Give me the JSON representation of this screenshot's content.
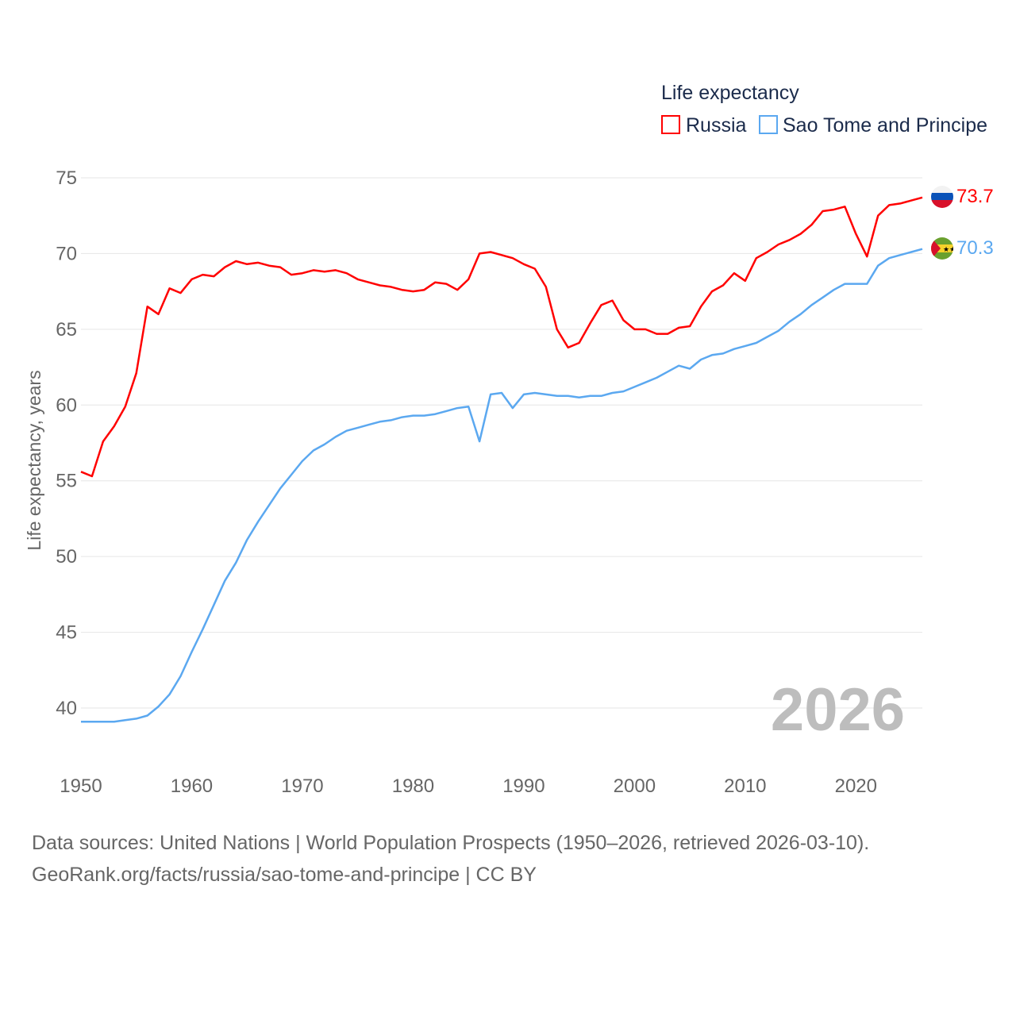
{
  "chart_data": {
    "type": "line",
    "title": "Life expectancy",
    "ylabel": "Life expectancy, years",
    "xlabel": "",
    "ylim": [
      40,
      75
    ],
    "xlim": [
      1950,
      2026
    ],
    "yticks": [
      "40",
      "45",
      "50",
      "55",
      "60",
      "65",
      "70",
      "75"
    ],
    "xticks": [
      "1950",
      "1960",
      "1970",
      "1980",
      "1990",
      "2000",
      "2010",
      "2020"
    ],
    "grid": true,
    "legend_position": "top-right",
    "current_year": "2026",
    "x_start": 1950,
    "series": [
      {
        "name": "Russia",
        "color": "#ff0000",
        "end_label": "73.7",
        "values": [
          55.6,
          55.3,
          57.6,
          58.6,
          59.9,
          62.1,
          66.5,
          66.0,
          67.7,
          67.4,
          68.3,
          68.6,
          68.5,
          69.1,
          69.5,
          69.3,
          69.4,
          69.2,
          69.1,
          68.6,
          68.7,
          68.9,
          68.8,
          68.9,
          68.7,
          68.3,
          68.1,
          67.9,
          67.8,
          67.6,
          67.5,
          67.6,
          68.1,
          68.0,
          67.6,
          68.3,
          70.0,
          70.1,
          69.9,
          69.7,
          69.3,
          69.0,
          67.8,
          65.0,
          63.8,
          64.1,
          65.4,
          66.6,
          66.9,
          65.6,
          65.0,
          65.0,
          64.7,
          64.7,
          65.1,
          65.2,
          66.5,
          67.5,
          67.9,
          68.7,
          68.2,
          69.7,
          70.1,
          70.6,
          70.9,
          71.3,
          71.9,
          72.8,
          72.9,
          73.1,
          71.3,
          69.8,
          72.5,
          73.2,
          73.3,
          73.5,
          73.7
        ]
      },
      {
        "name": "Sao Tome and Principe",
        "color": "#5ba8f0",
        "end_label": "70.3",
        "values": [
          39.1,
          39.1,
          39.1,
          39.1,
          39.2,
          39.3,
          39.5,
          40.1,
          40.9,
          42.1,
          43.7,
          45.2,
          46.8,
          48.4,
          49.6,
          51.1,
          52.3,
          53.4,
          54.5,
          55.4,
          56.3,
          57.0,
          57.4,
          57.9,
          58.3,
          58.5,
          58.7,
          58.9,
          59.0,
          59.2,
          59.3,
          59.3,
          59.4,
          59.6,
          59.8,
          59.9,
          57.6,
          60.7,
          60.8,
          59.8,
          60.7,
          60.8,
          60.7,
          60.6,
          60.6,
          60.5,
          60.6,
          60.6,
          60.8,
          60.9,
          61.2,
          61.5,
          61.8,
          62.2,
          62.6,
          62.4,
          63.0,
          63.3,
          63.4,
          63.7,
          63.9,
          64.1,
          64.5,
          64.9,
          65.5,
          66.0,
          66.6,
          67.1,
          67.6,
          68.0,
          68.0,
          68.0,
          69.2,
          69.7,
          69.9,
          70.1,
          70.3
        ]
      }
    ]
  },
  "source": {
    "line1": "Data sources: United Nations | World Population Prospects (1950–2026, retrieved 2026-03-10).",
    "line2": "GeoRank.org/facts/russia/sao-tome-and-principe | CC BY"
  }
}
